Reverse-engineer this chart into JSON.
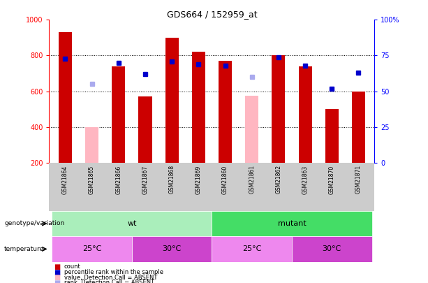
{
  "title": "GDS664 / 152959_at",
  "samples": [
    "GSM21864",
    "GSM21865",
    "GSM21866",
    "GSM21867",
    "GSM21868",
    "GSM21869",
    "GSM21860",
    "GSM21861",
    "GSM21862",
    "GSM21863",
    "GSM21870",
    "GSM21871"
  ],
  "counts": [
    930,
    0,
    740,
    570,
    900,
    820,
    770,
    0,
    800,
    740,
    500,
    600
  ],
  "absent_value": [
    0,
    400,
    0,
    0,
    0,
    0,
    0,
    575,
    0,
    0,
    0,
    0
  ],
  "percentile_rank": [
    73,
    0,
    70,
    62,
    71,
    69,
    68,
    0,
    74,
    68,
    52,
    63
  ],
  "absent_rank": [
    0,
    55,
    0,
    0,
    0,
    0,
    0,
    60,
    0,
    0,
    0,
    0
  ],
  "ylim_left": [
    200,
    1000
  ],
  "ylim_right": [
    0,
    100
  ],
  "yticks_left": [
    200,
    400,
    600,
    800,
    1000
  ],
  "yticks_right": [
    0,
    25,
    50,
    75,
    100
  ],
  "bar_color": "#cc0000",
  "absent_bar_color": "#ffb6c1",
  "rank_marker_color": "#0000cc",
  "absent_rank_color": "#aaaaee",
  "tick_area_color": "#cccccc",
  "genotype_groups": [
    {
      "label": "wt",
      "start": 0,
      "end": 6,
      "color": "#aaeebb"
    },
    {
      "label": "mutant",
      "start": 6,
      "end": 12,
      "color": "#44dd66"
    }
  ],
  "temperature_groups": [
    {
      "label": "25°C",
      "start": 0,
      "end": 3,
      "color": "#ee88ee"
    },
    {
      "label": "30°C",
      "start": 3,
      "end": 6,
      "color": "#cc44cc"
    },
    {
      "label": "25°C",
      "start": 6,
      "end": 9,
      "color": "#ee88ee"
    },
    {
      "label": "30°C",
      "start": 9,
      "end": 12,
      "color": "#cc44cc"
    }
  ],
  "legend_items": [
    {
      "label": "count",
      "color": "#cc0000"
    },
    {
      "label": "percentile rank within the sample",
      "color": "#0000cc"
    },
    {
      "label": "value, Detection Call = ABSENT",
      "color": "#ffb6c1"
    },
    {
      "label": "rank, Detection Call = ABSENT",
      "color": "#aaaaee"
    }
  ],
  "bar_width": 0.5,
  "rank_marker_size": 5,
  "absent_rank_size": 5
}
